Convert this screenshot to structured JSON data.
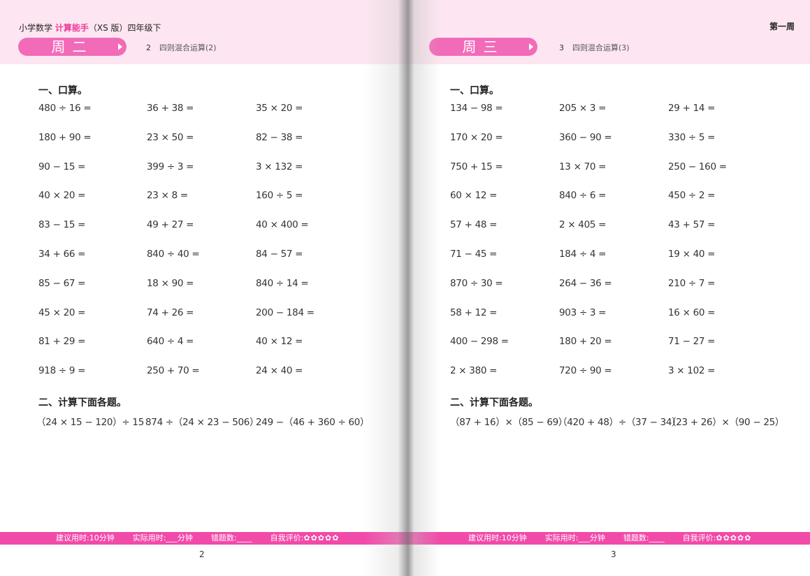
{
  "book": {
    "prefix": "小学数学",
    "brand": "计算能手",
    "suffix": "（XS 版）四年级下"
  },
  "week_label": "第一周",
  "colors": {
    "accent": "#f26bb9",
    "footer": "#f24aa9",
    "header_band": "#fde6f1"
  },
  "pages": [
    {
      "day": "周二",
      "lesson_no": "2",
      "lesson_title": "四则混合运算(2)",
      "section1_title": "一、口算。",
      "oral": [
        [
          "480 ÷ 16 =",
          "36 + 38 =",
          "35 × 20 ="
        ],
        [
          "180 + 90 =",
          "23 × 50 =",
          "82 − 38 ="
        ],
        [
          "90 − 15 =",
          "399 ÷ 3 =",
          "3 × 132 ="
        ],
        [
          "40 × 20 =",
          "23 × 8 =",
          "160 ÷ 5 ="
        ],
        [
          "83 − 15 =",
          "49 + 27 =",
          "40 × 400 ="
        ],
        [
          "34 + 66 =",
          "840 ÷ 40 =",
          "84 − 57 ="
        ],
        [
          "85 − 67 =",
          "18 × 90 =",
          "840 ÷ 14 ="
        ],
        [
          "45 × 20 =",
          "74 + 26 =",
          "200 − 184 ="
        ],
        [
          "81 + 29 =",
          "640 ÷ 4 =",
          "40 × 12 ="
        ],
        [
          "918 ÷ 9 =",
          "250 + 70 =",
          "24 × 40 ="
        ]
      ],
      "section2_title": "二、计算下面各题。",
      "calc": [
        "（24 × 15 − 120）÷ 15",
        "874 ÷（24 × 23 − 506）",
        "249 −（46 + 360 ÷ 60）"
      ],
      "footer": {
        "suggested": "建议用时:10分钟",
        "actual": "实际用时:___分钟",
        "errors": "错题数:____",
        "self": "自我评价:",
        "stars": "✿✿✿✿✿"
      },
      "page_number": "2"
    },
    {
      "day": "周三",
      "lesson_no": "3",
      "lesson_title": "四则混合运算(3)",
      "section1_title": "一、口算。",
      "oral": [
        [
          "134 − 98 =",
          "205 × 3 =",
          "29 + 14 ="
        ],
        [
          "170 × 20 =",
          "360 − 90 =",
          "330 ÷ 5 ="
        ],
        [
          "750 + 15 =",
          "13 × 70 =",
          "250 − 160 ="
        ],
        [
          "60 × 12 =",
          "840 ÷ 6 =",
          "450 ÷ 2 ="
        ],
        [
          "57 + 48 =",
          "2 × 405 =",
          "43 + 57 ="
        ],
        [
          "71 − 45 =",
          "184 ÷ 4 =",
          "19 × 40 ="
        ],
        [
          "870 ÷ 30 =",
          "264 − 36 =",
          "210 ÷ 7 ="
        ],
        [
          "58 + 12 =",
          "903 ÷ 3 =",
          "16 × 60 ="
        ],
        [
          "400 − 298 =",
          "180 + 20 =",
          "71 − 27 ="
        ],
        [
          "2 × 380 =",
          "720 ÷ 90 =",
          "3 × 102 ="
        ]
      ],
      "section2_title": "二、计算下面各题。",
      "calc": [
        "（87 + 16）×（85 − 69）",
        "（420 + 48）÷（37 − 34）",
        "（23 + 26）×（90 − 25）"
      ],
      "footer": {
        "suggested": "建议用时:10分钟",
        "actual": "实际用时:___分钟",
        "errors": "错题数:____",
        "self": "自我评价:",
        "stars": "✿✿✿✿✿"
      },
      "page_number": "3"
    }
  ]
}
